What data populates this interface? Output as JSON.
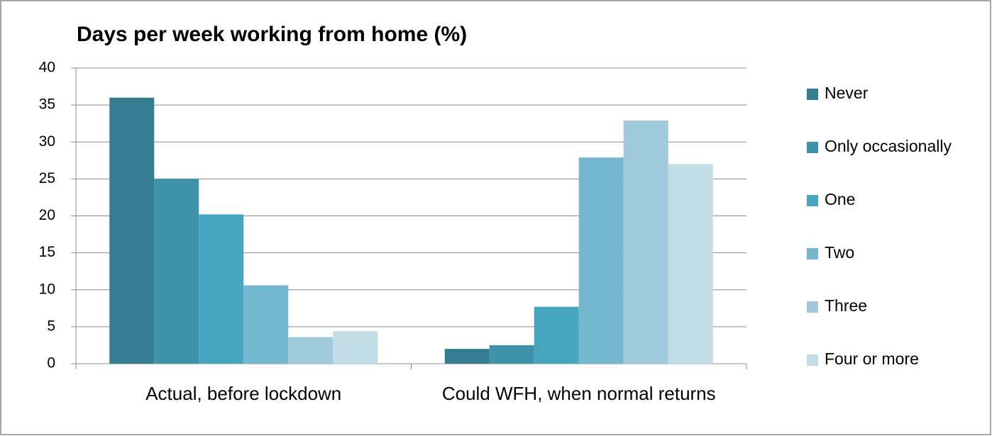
{
  "chart_data": {
    "type": "grouped-bar",
    "title": "Days per week working from home (%)",
    "categories": [
      "Actual, before lockdown",
      "Could WFH, when normal returns"
    ],
    "series": [
      {
        "name": "Never",
        "color": "#347d91",
        "values": [
          36,
          2
        ]
      },
      {
        "name": "Only occasionally",
        "color": "#3e92aa",
        "values": [
          25,
          2.5
        ]
      },
      {
        "name": "One",
        "color": "#46a6bf",
        "values": [
          20.2,
          7.7
        ]
      },
      {
        "name": "Two",
        "color": "#72b7cd",
        "values": [
          10.6,
          27.9
        ]
      },
      {
        "name": "Three",
        "color": "#a0cadb",
        "values": [
          3.6,
          32.9
        ]
      },
      {
        "name": "Four or more",
        "color": "#c3dde6",
        "values": [
          4.4,
          27
        ]
      }
    ],
    "ylim": [
      0,
      40
    ],
    "yticks": [
      0,
      5,
      10,
      15,
      20,
      25,
      30,
      35,
      40
    ],
    "grid": true,
    "legend": "right"
  }
}
